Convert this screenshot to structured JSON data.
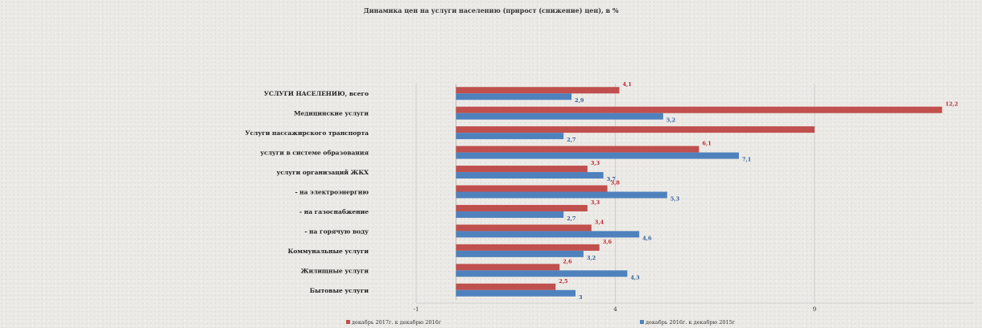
{
  "chart_data": {
    "type": "bar",
    "orientation": "horizontal",
    "title": "Динамика цен на услуги населению (прирост (снижение) цен), в %",
    "categories": [
      "УСЛУГИ НАСЕЛЕНИЮ, всего",
      "Медицинские услуги",
      "Услуги пассажирского транспорта",
      "услуги в системе образования",
      "услуги организаций ЖКХ",
      "- на электроэнергию",
      "- на газоснабжение",
      "- на горячую воду",
      "Коммунальные услуги",
      "Жилищные услуги",
      "Бытовые услуги"
    ],
    "series": [
      {
        "name": "декабрь 2017г. к декабрю 2016г",
        "color": "#c0504d",
        "values": [
          4.1,
          12.2,
          9.0,
          6.1,
          3.3,
          3.8,
          3.3,
          3.4,
          3.6,
          2.6,
          2.5
        ],
        "labels": [
          "4,1",
          "12,2",
          "",
          "6,1",
          "3,3",
          "3,8",
          "3,3",
          "3,4",
          "3,6",
          "2,6",
          "2,5"
        ]
      },
      {
        "name": "декабрь 2016г. к декабрю 2015г",
        "color": "#4f81bd",
        "values": [
          2.9,
          5.2,
          2.7,
          7.1,
          3.7,
          5.3,
          2.7,
          4.6,
          3.2,
          4.3,
          3.0
        ],
        "labels": [
          "2,9",
          "5,2",
          "2,7",
          "7,1",
          "3,7",
          "5,3",
          "2,7",
          "4,6",
          "3,2",
          "4,3",
          "3"
        ]
      }
    ],
    "xlim": [
      -1,
      13
    ],
    "xticks": [
      "-1",
      "4",
      "9"
    ],
    "grid": true,
    "legend_position": "bottom"
  }
}
